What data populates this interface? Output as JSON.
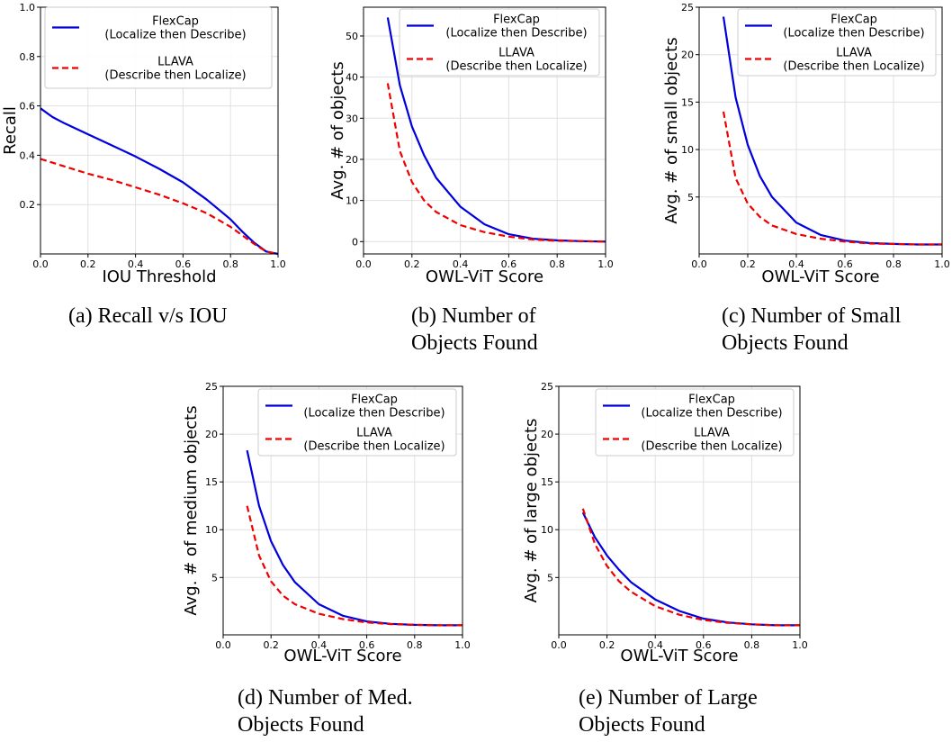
{
  "figure": {
    "captions": [
      [
        "(a) Recall v/s IOU"
      ],
      [
        "(b) Number of",
        "Objects Found"
      ],
      [
        "(c) Number of Small",
        "Objects Found"
      ],
      [
        "(d) Number of Med.",
        "Objects Found"
      ],
      [
        "(e) Number of Large",
        "Objects Found"
      ]
    ]
  },
  "chart_data": [
    {
      "type": "line",
      "title": "",
      "xlabel": "IOU Threshold",
      "ylabel": "Recall",
      "xlim": [
        0.0,
        1.0
      ],
      "ylim": [
        0.0,
        1.0
      ],
      "xticks": [
        0.0,
        0.2,
        0.4,
        0.6,
        0.8,
        1.0
      ],
      "xtick_labels": [
        "0.0",
        "0.2",
        "0.4",
        "0.6",
        "0.8",
        "1.0"
      ],
      "yticks": [
        0.2,
        0.4,
        0.6,
        0.8,
        1.0
      ],
      "ytick_labels": [
        "0.2",
        "0.4",
        "0.6",
        "0.8",
        "1.0"
      ],
      "grid": true,
      "legend_position": "top-left",
      "series": [
        {
          "name": "FlexCap\n(Localize then Describe)",
          "color": "#0000dd",
          "style": "solid",
          "x": [
            0.0,
            0.05,
            0.1,
            0.2,
            0.3,
            0.4,
            0.5,
            0.6,
            0.7,
            0.8,
            0.85,
            0.9,
            0.95,
            1.0
          ],
          "y": [
            0.59,
            0.555,
            0.53,
            0.485,
            0.44,
            0.395,
            0.345,
            0.29,
            0.22,
            0.14,
            0.09,
            0.045,
            0.01,
            0.0
          ]
        },
        {
          "name": "LLAVA\n(Describe then Localize)",
          "color": "#ee0000",
          "style": "dashed",
          "x": [
            0.0,
            0.05,
            0.1,
            0.2,
            0.3,
            0.4,
            0.5,
            0.6,
            0.7,
            0.8,
            0.85,
            0.9,
            0.95,
            1.0
          ],
          "y": [
            0.385,
            0.37,
            0.355,
            0.325,
            0.3,
            0.27,
            0.24,
            0.205,
            0.165,
            0.11,
            0.075,
            0.04,
            0.01,
            0.0
          ]
        }
      ]
    },
    {
      "type": "line",
      "title": "",
      "xlabel": "OWL-ViT Score",
      "ylabel": "Avg. # of objects",
      "xlim": [
        0.0,
        1.0
      ],
      "ylim": [
        -3,
        57
      ],
      "xticks": [
        0.0,
        0.2,
        0.4,
        0.6,
        0.8,
        1.0
      ],
      "xtick_labels": [
        "0.0",
        "0.2",
        "0.4",
        "0.6",
        "0.8",
        "1.0"
      ],
      "yticks": [
        0,
        10,
        20,
        30,
        40,
        50
      ],
      "ytick_labels": [
        "0",
        "10",
        "20",
        "30",
        "40",
        "50"
      ],
      "grid": true,
      "legend_position": "top-right",
      "series": [
        {
          "name": "FlexCap\n(Localize then Describe)",
          "color": "#0000dd",
          "style": "solid",
          "x": [
            0.1,
            0.15,
            0.2,
            0.25,
            0.3,
            0.4,
            0.5,
            0.6,
            0.7,
            0.8,
            0.9,
            1.0
          ],
          "y": [
            54.5,
            38.0,
            28.0,
            21.0,
            15.5,
            8.5,
            4.2,
            1.8,
            0.7,
            0.3,
            0.1,
            0.0
          ]
        },
        {
          "name": "LLAVA\n(Describe then Localize)",
          "color": "#ee0000",
          "style": "dashed",
          "x": [
            0.1,
            0.15,
            0.2,
            0.25,
            0.3,
            0.4,
            0.5,
            0.6,
            0.7,
            0.8,
            0.9,
            1.0
          ],
          "y": [
            38.5,
            22.0,
            14.5,
            10.0,
            7.2,
            4.0,
            2.3,
            1.2,
            0.5,
            0.2,
            0.1,
            0.0
          ]
        }
      ]
    },
    {
      "type": "line",
      "title": "",
      "xlabel": "OWL-ViT Score",
      "ylabel": "Avg. # of small objects",
      "xlim": [
        0.0,
        1.0
      ],
      "ylim": [
        -1,
        25
      ],
      "xticks": [
        0.0,
        0.2,
        0.4,
        0.6,
        0.8,
        1.0
      ],
      "xtick_labels": [
        "0.0",
        "0.2",
        "0.4",
        "0.6",
        "0.8",
        "1.0"
      ],
      "yticks": [
        5,
        10,
        15,
        20,
        25
      ],
      "ytick_labels": [
        "5",
        "10",
        "15",
        "20",
        "25"
      ],
      "grid": true,
      "legend_position": "top-right",
      "series": [
        {
          "name": "FlexCap\n(Localize then Describe)",
          "color": "#0000dd",
          "style": "solid",
          "x": [
            0.1,
            0.15,
            0.2,
            0.25,
            0.3,
            0.4,
            0.5,
            0.6,
            0.7,
            0.8,
            0.9,
            1.0
          ],
          "y": [
            24.0,
            15.5,
            10.5,
            7.2,
            5.0,
            2.3,
            1.0,
            0.4,
            0.15,
            0.05,
            0.0,
            0.0
          ]
        },
        {
          "name": "LLAVA\n(Describe then Localize)",
          "color": "#ee0000",
          "style": "dashed",
          "x": [
            0.1,
            0.15,
            0.2,
            0.25,
            0.3,
            0.4,
            0.5,
            0.6,
            0.7,
            0.8,
            0.9,
            1.0
          ],
          "y": [
            14.0,
            7.0,
            4.3,
            2.9,
            2.0,
            1.1,
            0.6,
            0.3,
            0.1,
            0.05,
            0.0,
            0.0
          ]
        }
      ]
    },
    {
      "type": "line",
      "title": "",
      "xlabel": "OWL-ViT Score",
      "ylabel": "Avg. # of medium objects",
      "xlim": [
        0.0,
        1.0
      ],
      "ylim": [
        -1,
        25
      ],
      "xticks": [
        0.0,
        0.2,
        0.4,
        0.6,
        0.8,
        1.0
      ],
      "xtick_labels": [
        "0.0",
        "0.2",
        "0.4",
        "0.6",
        "0.8",
        "1.0"
      ],
      "yticks": [
        5,
        10,
        15,
        20,
        25
      ],
      "ytick_labels": [
        "5",
        "10",
        "15",
        "20",
        "25"
      ],
      "grid": true,
      "legend_position": "top-right",
      "series": [
        {
          "name": "FlexCap\n(Localize then Describe)",
          "color": "#0000dd",
          "style": "solid",
          "x": [
            0.1,
            0.15,
            0.2,
            0.25,
            0.3,
            0.4,
            0.5,
            0.6,
            0.7,
            0.8,
            0.9,
            1.0
          ],
          "y": [
            18.3,
            12.5,
            8.8,
            6.3,
            4.5,
            2.2,
            1.0,
            0.4,
            0.15,
            0.05,
            0.0,
            0.0
          ]
        },
        {
          "name": "LLAVA\n(Describe then Localize)",
          "color": "#ee0000",
          "style": "dashed",
          "x": [
            0.1,
            0.15,
            0.2,
            0.25,
            0.3,
            0.4,
            0.5,
            0.6,
            0.7,
            0.8,
            0.9,
            1.0
          ],
          "y": [
            12.5,
            7.3,
            4.6,
            3.1,
            2.2,
            1.2,
            0.65,
            0.3,
            0.12,
            0.05,
            0.0,
            0.0
          ]
        }
      ]
    },
    {
      "type": "line",
      "title": "",
      "xlabel": "OWL-ViT Score",
      "ylabel": "Avg. # of large objects",
      "xlim": [
        0.0,
        1.0
      ],
      "ylim": [
        -1,
        25
      ],
      "xticks": [
        0.0,
        0.2,
        0.4,
        0.6,
        0.8,
        1.0
      ],
      "xtick_labels": [
        "0.0",
        "0.2",
        "0.4",
        "0.6",
        "0.8",
        "1.0"
      ],
      "yticks": [
        5,
        10,
        15,
        20,
        25
      ],
      "ytick_labels": [
        "5",
        "10",
        "15",
        "20",
        "25"
      ],
      "grid": true,
      "legend_position": "top-right",
      "series": [
        {
          "name": "FlexCap\n(Localize then Describe)",
          "color": "#0000dd",
          "style": "solid",
          "x": [
            0.1,
            0.15,
            0.2,
            0.25,
            0.3,
            0.4,
            0.5,
            0.6,
            0.7,
            0.8,
            0.9,
            1.0
          ],
          "y": [
            11.8,
            9.2,
            7.3,
            5.8,
            4.5,
            2.7,
            1.5,
            0.7,
            0.3,
            0.1,
            0.0,
            0.0
          ]
        },
        {
          "name": "LLAVA\n(Describe then Localize)",
          "color": "#ee0000",
          "style": "dashed",
          "x": [
            0.1,
            0.15,
            0.2,
            0.25,
            0.3,
            0.4,
            0.5,
            0.6,
            0.7,
            0.8,
            0.9,
            1.0
          ],
          "y": [
            12.2,
            8.5,
            6.2,
            4.6,
            3.5,
            2.0,
            1.1,
            0.55,
            0.25,
            0.1,
            0.0,
            0.0
          ]
        }
      ]
    }
  ]
}
